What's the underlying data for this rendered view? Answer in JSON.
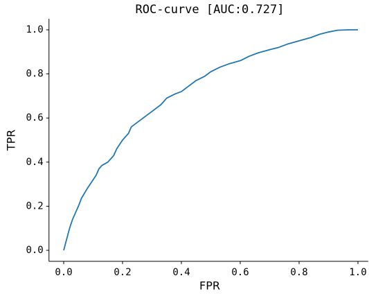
{
  "chart_data": {
    "type": "line",
    "title": "ROC-curve [AUC:0.727]",
    "x_label": "FPR",
    "y_label": "TPR",
    "x": [
      0,
      0.01,
      0.02,
      0.03,
      0.04,
      0.05,
      0.06,
      0.08,
      0.1,
      0.11,
      0.12,
      0.13,
      0.15,
      0.17,
      0.18,
      0.2,
      0.22,
      0.23,
      0.25,
      0.27,
      0.3,
      0.33,
      0.35,
      0.38,
      0.4,
      0.42,
      0.45,
      0.48,
      0.5,
      0.53,
      0.56,
      0.6,
      0.63,
      0.66,
      0.7,
      0.73,
      0.76,
      0.8,
      0.84,
      0.87,
      0.9,
      0.93,
      0.97,
      1.0
    ],
    "series": [
      {
        "name": "ROC",
        "color": "#1f77b4",
        "values": [
          0,
          0.05,
          0.1,
          0.14,
          0.17,
          0.2,
          0.235,
          0.28,
          0.32,
          0.34,
          0.37,
          0.385,
          0.4,
          0.43,
          0.46,
          0.5,
          0.53,
          0.56,
          0.58,
          0.6,
          0.63,
          0.66,
          0.69,
          0.71,
          0.72,
          0.74,
          0.77,
          0.79,
          0.81,
          0.83,
          0.845,
          0.86,
          0.88,
          0.895,
          0.91,
          0.92,
          0.935,
          0.95,
          0.965,
          0.98,
          0.99,
          0.998,
          1.0,
          1.0
        ]
      }
    ],
    "xlim": [
      -0.05,
      1.035
    ],
    "ylim": [
      -0.05,
      1.05
    ],
    "xticks": [
      {
        "value": 0,
        "label": "0.0"
      },
      0.2,
      0.4,
      0.6,
      0.8,
      {
        "value": 1,
        "label": "1.0"
      }
    ],
    "yticks": [
      {
        "value": 0,
        "label": "0.0"
      },
      0.2,
      0.4,
      0.6,
      0.8,
      {
        "value": 1,
        "label": "1.0"
      }
    ],
    "grid": false
  }
}
